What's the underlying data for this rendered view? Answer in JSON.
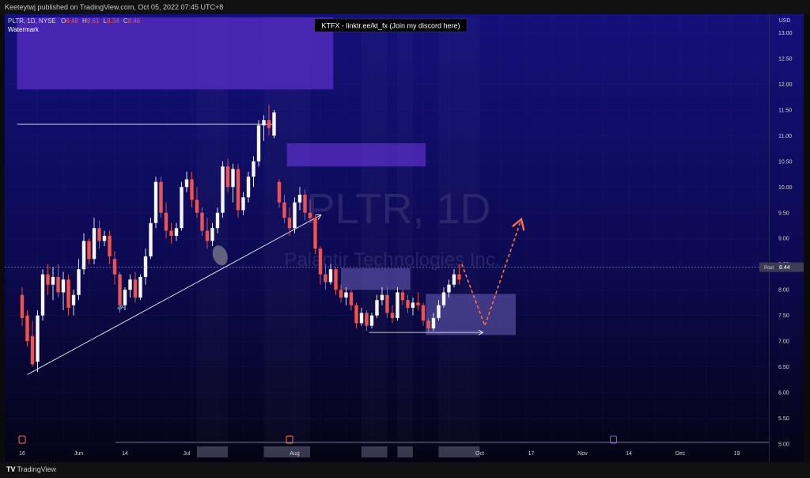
{
  "header": {
    "published_by": "Keeteytwj published on TradingView.com, Oct 05, 2022 07:45 UTC+8"
  },
  "legend": {
    "symbol": "PLTR, 1D, NYSE",
    "ohlc": [
      {
        "label": "O",
        "value": "8.48"
      },
      {
        "label": "H",
        "value": "8.61"
      },
      {
        "label": "L",
        "value": "8.34"
      },
      {
        "label": "C",
        "value": "8.46"
      }
    ],
    "watermark_label": "Watermark"
  },
  "banner": "KTFX - linktr.ee/kt_fx (Join my discord here)",
  "watermark": {
    "ticker": "PLTR, 1D",
    "company": "Palantir Technologies Inc."
  },
  "footer": {
    "brand_mark": "TV",
    "brand_name": "TradingView"
  },
  "chart_data": {
    "type": "candlestick",
    "currency": "USD",
    "ylim": [
      5.0,
      13.3
    ],
    "y_ticks": [
      5.0,
      5.5,
      6.0,
      6.5,
      7.0,
      7.5,
      8.0,
      8.5,
      9.0,
      9.5,
      10.0,
      10.5,
      11.0,
      11.5,
      12.0,
      12.5,
      13.0
    ],
    "x_tick_labels": [
      {
        "label": "16",
        "index": 0
      },
      {
        "label": "Jun",
        "index": 11
      },
      {
        "label": "14",
        "index": 20
      },
      {
        "label": "Jul",
        "index": 32
      },
      {
        "label": "Aug",
        "index": 53
      },
      {
        "label": "Oct",
        "index": 89
      },
      {
        "label": "17",
        "index": 99
      },
      {
        "label": "Nov",
        "index": 109
      },
      {
        "label": "14",
        "index": 118
      },
      {
        "label": "Dec",
        "index": 128
      },
      {
        "label": "19",
        "index": 139
      }
    ],
    "last_price": {
      "label": "Post",
      "value": 8.44
    },
    "colors": {
      "up": "#f5f5f5",
      "down": "#ef5350",
      "zone": "#5b2fc9",
      "zone2": "#6a5fb8",
      "arrow": "#ff7043"
    },
    "candles": [
      {
        "o": 7.9,
        "h": 8.05,
        "l": 7.3,
        "c": 7.45
      },
      {
        "o": 7.5,
        "h": 7.6,
        "l": 6.9,
        "c": 7.0
      },
      {
        "o": 7.1,
        "h": 7.4,
        "l": 6.5,
        "c": 6.55
      },
      {
        "o": 6.6,
        "h": 7.6,
        "l": 6.4,
        "c": 7.5
      },
      {
        "o": 7.5,
        "h": 8.4,
        "l": 7.4,
        "c": 8.3
      },
      {
        "o": 8.3,
        "h": 8.5,
        "l": 7.9,
        "c": 8.1
      },
      {
        "o": 8.1,
        "h": 8.45,
        "l": 7.8,
        "c": 8.25
      },
      {
        "o": 8.25,
        "h": 8.5,
        "l": 7.85,
        "c": 7.95
      },
      {
        "o": 7.95,
        "h": 8.35,
        "l": 7.6,
        "c": 8.2
      },
      {
        "o": 8.2,
        "h": 8.3,
        "l": 7.5,
        "c": 7.65
      },
      {
        "o": 7.7,
        "h": 8.0,
        "l": 7.5,
        "c": 7.9
      },
      {
        "o": 7.9,
        "h": 8.6,
        "l": 7.8,
        "c": 8.4
      },
      {
        "o": 8.4,
        "h": 9.1,
        "l": 8.3,
        "c": 8.95
      },
      {
        "o": 8.95,
        "h": 9.0,
        "l": 8.5,
        "c": 8.6
      },
      {
        "o": 8.6,
        "h": 9.4,
        "l": 8.5,
        "c": 9.2
      },
      {
        "o": 9.2,
        "h": 9.35,
        "l": 8.8,
        "c": 8.95
      },
      {
        "o": 8.95,
        "h": 9.15,
        "l": 8.85,
        "c": 9.05
      },
      {
        "o": 9.05,
        "h": 9.15,
        "l": 8.5,
        "c": 8.65
      },
      {
        "o": 8.6,
        "h": 8.75,
        "l": 8.1,
        "c": 8.3
      },
      {
        "o": 8.3,
        "h": 8.35,
        "l": 7.55,
        "c": 7.7
      },
      {
        "o": 7.7,
        "h": 8.05,
        "l": 7.6,
        "c": 8.0
      },
      {
        "o": 8.0,
        "h": 8.3,
        "l": 7.85,
        "c": 8.2
      },
      {
        "o": 8.2,
        "h": 8.35,
        "l": 7.75,
        "c": 7.85
      },
      {
        "o": 7.85,
        "h": 8.3,
        "l": 7.8,
        "c": 8.25
      },
      {
        "o": 8.25,
        "h": 8.8,
        "l": 8.1,
        "c": 8.65
      },
      {
        "o": 8.65,
        "h": 9.4,
        "l": 8.6,
        "c": 9.3
      },
      {
        "o": 9.3,
        "h": 10.2,
        "l": 9.2,
        "c": 10.1
      },
      {
        "o": 10.1,
        "h": 10.2,
        "l": 9.4,
        "c": 9.5
      },
      {
        "o": 9.5,
        "h": 9.7,
        "l": 9.0,
        "c": 9.15
      },
      {
        "o": 9.15,
        "h": 9.3,
        "l": 8.9,
        "c": 9.05
      },
      {
        "o": 9.05,
        "h": 9.3,
        "l": 8.95,
        "c": 9.2
      },
      {
        "o": 9.2,
        "h": 10.1,
        "l": 9.15,
        "c": 10.0
      },
      {
        "o": 10.0,
        "h": 10.3,
        "l": 9.9,
        "c": 10.15
      },
      {
        "o": 10.15,
        "h": 10.3,
        "l": 9.6,
        "c": 9.75
      },
      {
        "o": 9.75,
        "h": 10.0,
        "l": 9.4,
        "c": 9.5
      },
      {
        "o": 9.5,
        "h": 9.6,
        "l": 9.05,
        "c": 9.15
      },
      {
        "o": 9.15,
        "h": 9.4,
        "l": 8.8,
        "c": 8.95
      },
      {
        "o": 8.95,
        "h": 9.3,
        "l": 8.85,
        "c": 9.2
      },
      {
        "o": 9.2,
        "h": 9.6,
        "l": 9.1,
        "c": 9.5
      },
      {
        "o": 9.5,
        "h": 10.5,
        "l": 9.4,
        "c": 10.4
      },
      {
        "o": 10.4,
        "h": 10.55,
        "l": 9.9,
        "c": 10.0
      },
      {
        "o": 10.0,
        "h": 10.45,
        "l": 9.7,
        "c": 10.35
      },
      {
        "o": 10.35,
        "h": 10.45,
        "l": 9.4,
        "c": 9.55
      },
      {
        "o": 9.55,
        "h": 9.9,
        "l": 9.45,
        "c": 9.8
      },
      {
        "o": 9.8,
        "h": 10.3,
        "l": 9.7,
        "c": 10.2
      },
      {
        "o": 10.2,
        "h": 10.6,
        "l": 10.0,
        "c": 10.5
      },
      {
        "o": 10.5,
        "h": 11.3,
        "l": 10.4,
        "c": 11.2
      },
      {
        "o": 11.2,
        "h": 11.4,
        "l": 10.9,
        "c": 11.3
      },
      {
        "o": 11.3,
        "h": 11.6,
        "l": 11.0,
        "c": 11.15
      },
      {
        "o": 11.0,
        "h": 11.5,
        "l": 10.95,
        "c": 11.45
      },
      {
        "o": 10.1,
        "h": 10.15,
        "l": 9.6,
        "c": 9.7
      },
      {
        "o": 9.7,
        "h": 9.85,
        "l": 9.3,
        "c": 9.4
      },
      {
        "o": 9.4,
        "h": 9.6,
        "l": 9.05,
        "c": 9.2
      },
      {
        "o": 9.2,
        "h": 9.8,
        "l": 9.1,
        "c": 9.7
      },
      {
        "o": 9.7,
        "h": 10.0,
        "l": 9.55,
        "c": 9.85
      },
      {
        "o": 9.85,
        "h": 9.95,
        "l": 9.35,
        "c": 9.5
      },
      {
        "o": 9.5,
        "h": 9.75,
        "l": 9.3,
        "c": 9.4
      },
      {
        "o": 9.4,
        "h": 9.45,
        "l": 8.7,
        "c": 8.8
      },
      {
        "o": 8.8,
        "h": 8.85,
        "l": 8.1,
        "c": 8.3
      },
      {
        "o": 8.3,
        "h": 8.5,
        "l": 8.0,
        "c": 8.15
      },
      {
        "o": 8.15,
        "h": 8.5,
        "l": 8.1,
        "c": 8.4
      },
      {
        "o": 8.4,
        "h": 8.45,
        "l": 7.9,
        "c": 8.0
      },
      {
        "o": 8.0,
        "h": 8.1,
        "l": 7.75,
        "c": 7.85
      },
      {
        "o": 7.85,
        "h": 8.05,
        "l": 7.7,
        "c": 7.95
      },
      {
        "o": 7.95,
        "h": 8.0,
        "l": 7.6,
        "c": 7.7
      },
      {
        "o": 7.7,
        "h": 7.75,
        "l": 7.25,
        "c": 7.35
      },
      {
        "o": 7.35,
        "h": 7.65,
        "l": 7.3,
        "c": 7.55
      },
      {
        "o": 7.55,
        "h": 7.6,
        "l": 7.2,
        "c": 7.3
      },
      {
        "o": 7.3,
        "h": 7.55,
        "l": 7.25,
        "c": 7.5
      },
      {
        "o": 7.5,
        "h": 7.9,
        "l": 7.45,
        "c": 7.8
      },
      {
        "o": 7.8,
        "h": 8.05,
        "l": 7.7,
        "c": 7.9
      },
      {
        "o": 7.9,
        "h": 8.05,
        "l": 7.45,
        "c": 7.55
      },
      {
        "o": 7.55,
        "h": 7.7,
        "l": 7.35,
        "c": 7.45
      },
      {
        "o": 7.45,
        "h": 8.05,
        "l": 7.4,
        "c": 7.95
      },
      {
        "o": 7.95,
        "h": 8.0,
        "l": 7.7,
        "c": 7.8
      },
      {
        "o": 7.8,
        "h": 7.9,
        "l": 7.55,
        "c": 7.65
      },
      {
        "o": 7.65,
        "h": 7.85,
        "l": 7.5,
        "c": 7.75
      },
      {
        "o": 7.75,
        "h": 7.95,
        "l": 7.6,
        "c": 7.7
      },
      {
        "o": 7.7,
        "h": 7.75,
        "l": 7.3,
        "c": 7.4
      },
      {
        "o": 7.4,
        "h": 7.45,
        "l": 7.15,
        "c": 7.25
      },
      {
        "o": 7.25,
        "h": 7.55,
        "l": 7.2,
        "c": 7.45
      },
      {
        "o": 7.45,
        "h": 7.8,
        "l": 7.4,
        "c": 7.7
      },
      {
        "o": 7.7,
        "h": 8.05,
        "l": 7.65,
        "c": 7.95
      },
      {
        "o": 7.95,
        "h": 8.2,
        "l": 7.85,
        "c": 8.1
      },
      {
        "o": 8.1,
        "h": 8.4,
        "l": 8.05,
        "c": 8.3
      },
      {
        "o": 8.3,
        "h": 8.5,
        "l": 8.1,
        "c": 8.2
      }
    ],
    "zones": [
      {
        "x0": -1,
        "x1": 60.5,
        "y0": 11.9,
        "y1": 13.3,
        "style": "zone"
      },
      {
        "x0": 51.5,
        "x1": 78.5,
        "y0": 10.4,
        "y1": 10.85,
        "style": "zone"
      },
      {
        "x0": 62,
        "x1": 75.5,
        "y0": 8.0,
        "y1": 8.42,
        "style": "zone2"
      },
      {
        "x0": 78.5,
        "x1": 96,
        "y0": 7.12,
        "y1": 7.92,
        "style": "zone2"
      }
    ],
    "hlines": [
      {
        "x0": -1,
        "x1": 49,
        "y": 11.22
      },
      {
        "x0": 67.5,
        "x1": 89.5,
        "y": 7.17,
        "arrow": true
      }
    ],
    "trendline": {
      "x0": 1,
      "y0": 6.35,
      "x1": 58,
      "y1": 9.45
    },
    "trendline_label": "SR",
    "forecast": [
      {
        "i": 85.5,
        "p": 8.5
      },
      {
        "i": 90,
        "p": 7.3
      },
      {
        "i": 97,
        "p": 9.35
      }
    ],
    "ellipse": {
      "i": 38.5,
      "p": 8.67
    },
    "date_markers": [
      {
        "index": 0,
        "style": "orange"
      },
      {
        "index": 52,
        "style": "orange"
      },
      {
        "index": 115,
        "style": "purple"
      }
    ],
    "x_range_highlights": [
      {
        "i0": 34,
        "i1": 40
      },
      {
        "i0": 47,
        "i1": 56
      },
      {
        "i0": 66,
        "i1": 71
      },
      {
        "i0": 73,
        "i1": 76
      },
      {
        "i0": 81,
        "i1": 89
      }
    ],
    "grid": true
  }
}
